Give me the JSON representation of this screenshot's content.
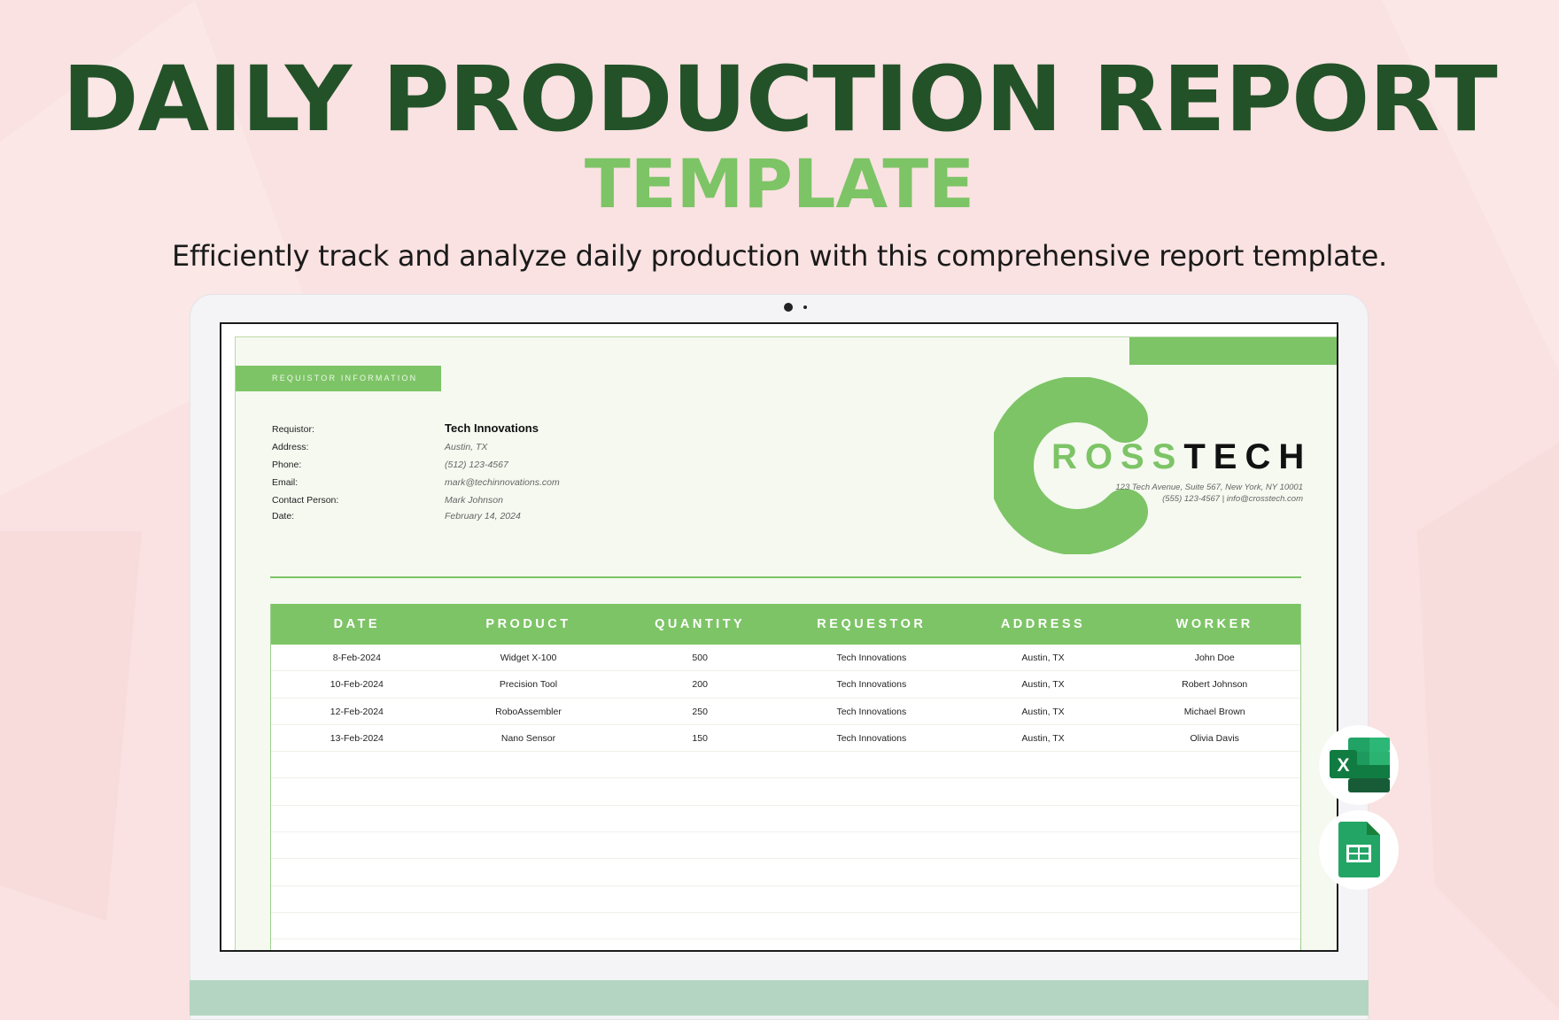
{
  "hero": {
    "title": "DAILY PRODUCTION REPORT",
    "title_accent": "TEMPLATE",
    "subtitle": "Efficiently track and analyze daily production with this comprehensive report template."
  },
  "colors": {
    "background": "#f9e2e1",
    "title": "#235229",
    "accent": "#7dc466"
  },
  "document": {
    "section_label": "REQUISTOR INFORMATION",
    "fields": [
      {
        "label": "Requistor:",
        "value": "Tech Innovations"
      },
      {
        "label": "Address:",
        "value": "Austin, TX"
      },
      {
        "label": "Phone:",
        "value": "(512) 123-4567"
      },
      {
        "label": "Email:",
        "value": "mark@techinnovations.com"
      },
      {
        "label": "Contact Person:",
        "value": "Mark Johnson"
      },
      {
        "label": "Date:",
        "value": "February 14, 2024"
      }
    ],
    "company": {
      "name_part1": "ROSS",
      "name_part2": "TECH",
      "address": "123 Tech Avenue, Suite 567, New York, NY 10001",
      "contact": "(555) 123-4567 | info@crosstech.com"
    },
    "table": {
      "headers": [
        "DATE",
        "PRODUCT",
        "QUANTITY",
        "REQUESTOR",
        "ADDRESS",
        "WORKER"
      ],
      "rows": [
        [
          "8-Feb-2024",
          "Widget X-100",
          "500",
          "Tech Innovations",
          "Austin, TX",
          "John Doe"
        ],
        [
          "10-Feb-2024",
          "Precision Tool",
          "200",
          "Tech Innovations",
          "Austin, TX",
          "Robert Johnson"
        ],
        [
          "12-Feb-2024",
          "RoboAssembler",
          "250",
          "Tech Innovations",
          "Austin, TX",
          "Michael Brown"
        ],
        [
          "13-Feb-2024",
          "Nano Sensor",
          "150",
          "Tech Innovations",
          "Austin, TX",
          "Olivia Davis"
        ]
      ]
    }
  },
  "app_icons": [
    "excel-icon",
    "google-sheets-icon"
  ]
}
